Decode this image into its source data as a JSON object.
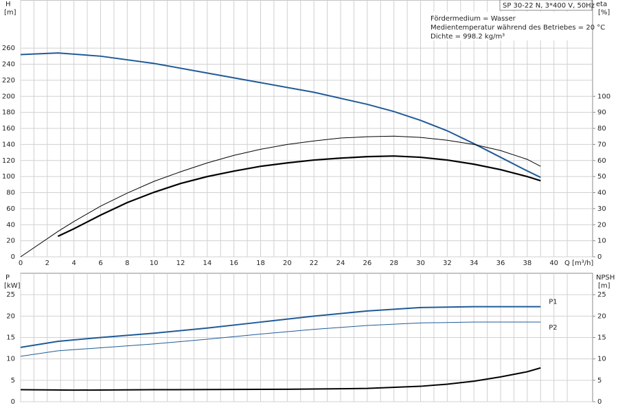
{
  "chart_data": [
    {
      "type": "line",
      "title": "SP 30-22 N, 3*400 V, 50Hz",
      "annotations": [
        "Fördermedium = Wasser",
        "Medientemperatur während des Betriebes = 20 °C",
        "Dichte = 998.2 kg/m³"
      ],
      "ylabel": "H",
      "ylabel_unit": "[m]",
      "y2label": "eta",
      "y2label_unit": "[%]",
      "xlabel": "Q [m³/h]",
      "xlim": [
        0,
        42.9
      ],
      "xticks": [
        0,
        2,
        4,
        6,
        8,
        10,
        12,
        14,
        16,
        18,
        20,
        22,
        24,
        26,
        28,
        30,
        32,
        34,
        36,
        38,
        40
      ],
      "ylim": [
        0,
        320
      ],
      "yticks": [
        0,
        20,
        40,
        60,
        80,
        100,
        120,
        140,
        160,
        180,
        200,
        220,
        240,
        260
      ],
      "y2lim": [
        0,
        160
      ],
      "y2ticks": [
        0,
        10,
        20,
        30,
        40,
        50,
        60,
        70,
        80,
        90,
        100
      ],
      "grid": true,
      "series": [
        {
          "color": "#1f5a96",
          "linewidth": 2,
          "x": [
            0,
            2.8,
            6,
            10,
            14,
            18,
            22,
            26,
            28,
            30,
            32,
            34,
            36,
            38,
            39
          ],
          "values": [
            252,
            254,
            250,
            241,
            229,
            217,
            205,
            190,
            181,
            170,
            157,
            141,
            124,
            107,
            99
          ]
        },
        {
          "color": "#000000",
          "linewidth": 1,
          "axis": "y2",
          "x": [
            0,
            2.8,
            4,
            6,
            8,
            10,
            12,
            14,
            16,
            18,
            20,
            22,
            24,
            26,
            28,
            30,
            32,
            34,
            36,
            38,
            39
          ],
          "values": [
            0,
            15.8,
            22,
            31.6,
            39.7,
            47,
            53,
            58.5,
            63.2,
            67,
            70,
            72.2,
            74,
            74.8,
            75.2,
            74.4,
            72.6,
            70,
            66.2,
            60.7,
            56.4
          ]
        },
        {
          "color": "#000000",
          "linewidth": 2.2,
          "axis": "y2",
          "x": [
            2.8,
            4,
            6,
            8,
            10,
            12,
            14,
            16,
            18,
            20,
            22,
            24,
            26,
            28,
            30,
            32,
            34,
            36,
            38,
            39
          ],
          "values": [
            12.8,
            17.5,
            26,
            33.8,
            40.2,
            45.7,
            50,
            53.4,
            56.4,
            58.5,
            60.3,
            61.5,
            62.4,
            62.8,
            62,
            60.3,
            57.7,
            54.3,
            50,
            47.4
          ]
        }
      ]
    },
    {
      "type": "line",
      "ylabel": "P",
      "ylabel_unit": "[kW]",
      "y2label": "NPSH",
      "y2label_unit": "[m]",
      "xlim": [
        0,
        42.9
      ],
      "ylim": [
        0,
        30
      ],
      "yticks": [
        0,
        5,
        10,
        15,
        20,
        25
      ],
      "y2lim": [
        0,
        30
      ],
      "y2ticks": [
        0,
        5,
        10,
        15,
        20,
        25
      ],
      "grid": true,
      "series": [
        {
          "name": "P1",
          "color": "#1f5a96",
          "linewidth": 2,
          "x": [
            0,
            2.8,
            6,
            10,
            14,
            18,
            22,
            26,
            30,
            34,
            38,
            39
          ],
          "values": [
            12.7,
            14.1,
            15,
            16,
            17.2,
            18.6,
            20,
            21.2,
            22,
            22.2,
            22.2,
            22.2
          ]
        },
        {
          "name": "P2",
          "color": "#1f5a96",
          "linewidth": 1,
          "x": [
            0,
            2.8,
            6,
            10,
            14,
            18,
            22,
            26,
            30,
            34,
            38,
            39
          ],
          "values": [
            10.6,
            11.9,
            12.6,
            13.5,
            14.6,
            15.8,
            16.9,
            17.8,
            18.4,
            18.6,
            18.6,
            18.6
          ]
        },
        {
          "color": "#000000",
          "linewidth": 2,
          "axis": "y2",
          "x": [
            0,
            4,
            10,
            20,
            26,
            30,
            32,
            34,
            36,
            38,
            39
          ],
          "values": [
            2.8,
            2.7,
            2.8,
            2.9,
            3.1,
            3.6,
            4.1,
            4.8,
            5.8,
            7,
            7.9
          ]
        }
      ]
    }
  ]
}
